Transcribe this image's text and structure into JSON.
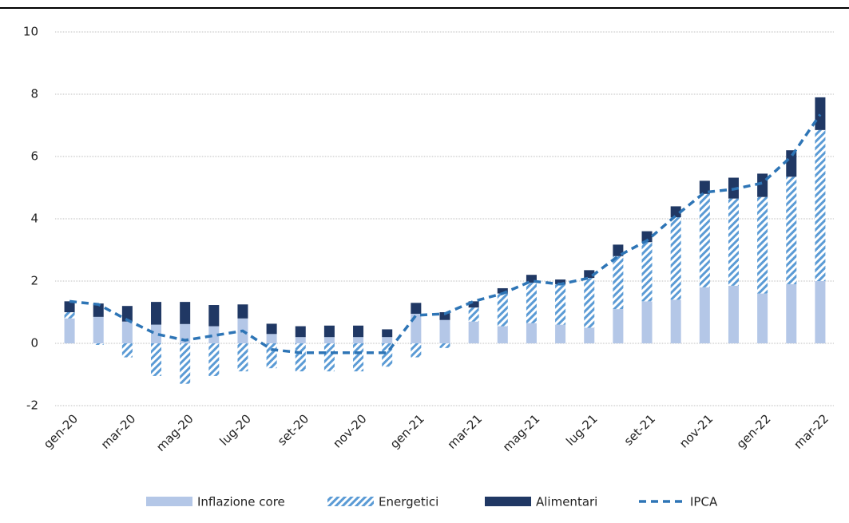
{
  "chart_data": {
    "type": "bar",
    "categories": [
      "gen-20",
      null,
      "mar-20",
      null,
      "mag-20",
      null,
      "lug-20",
      null,
      "set-20",
      null,
      "nov-20",
      null,
      "gen-21",
      null,
      "mar-21",
      null,
      "mag-21",
      null,
      "lug-21",
      null,
      "set-21",
      null,
      "nov-21",
      null,
      "gen-22",
      null,
      "mar-22"
    ],
    "series": [
      {
        "name": "Inflazione core",
        "type": "bar",
        "color": "#b4c7e7",
        "values": [
          0.8,
          0.85,
          0.7,
          0.6,
          0.62,
          0.55,
          0.8,
          0.3,
          0.2,
          0.2,
          0.2,
          0.2,
          0.95,
          0.75,
          0.7,
          0.55,
          0.65,
          0.6,
          0.5,
          1.1,
          1.35,
          1.4,
          1.8,
          1.85,
          1.6,
          1.9,
          2.0
        ]
      },
      {
        "name": "Energetici",
        "type": "bar",
        "color": "#5b9bd5",
        "hatch": true,
        "values": [
          0.2,
          -0.05,
          -0.45,
          -1.05,
          -1.3,
          -1.05,
          -0.9,
          -0.8,
          -0.9,
          -0.9,
          -0.9,
          -0.75,
          -0.45,
          -0.15,
          0.45,
          1.05,
          1.3,
          1.3,
          1.6,
          1.7,
          1.9,
          2.65,
          3.0,
          2.8,
          3.1,
          3.45,
          4.85
        ]
      },
      {
        "name": "Alimentari",
        "type": "bar",
        "color": "#203864",
        "values": [
          0.35,
          0.43,
          0.5,
          0.73,
          0.71,
          0.68,
          0.45,
          0.33,
          0.35,
          0.37,
          0.37,
          0.25,
          0.35,
          0.25,
          0.2,
          0.17,
          0.25,
          0.15,
          0.25,
          0.37,
          0.35,
          0.35,
          0.42,
          0.67,
          0.75,
          0.85,
          1.05
        ]
      },
      {
        "name": "IPCA",
        "type": "line",
        "color": "#2e75b6",
        "dashed": true,
        "values": [
          1.35,
          1.25,
          0.75,
          0.3,
          0.1,
          0.25,
          0.4,
          -0.2,
          -0.3,
          -0.3,
          -0.3,
          -0.3,
          0.9,
          0.95,
          1.35,
          1.6,
          2.0,
          1.9,
          2.1,
          2.8,
          3.3,
          4.1,
          4.85,
          4.95,
          5.15,
          6.0,
          7.35
        ]
      }
    ],
    "ylim": [
      -2,
      10
    ],
    "yticks": [
      -2,
      0,
      2,
      4,
      6,
      8,
      10
    ],
    "grid": true,
    "legend": "bottom"
  }
}
